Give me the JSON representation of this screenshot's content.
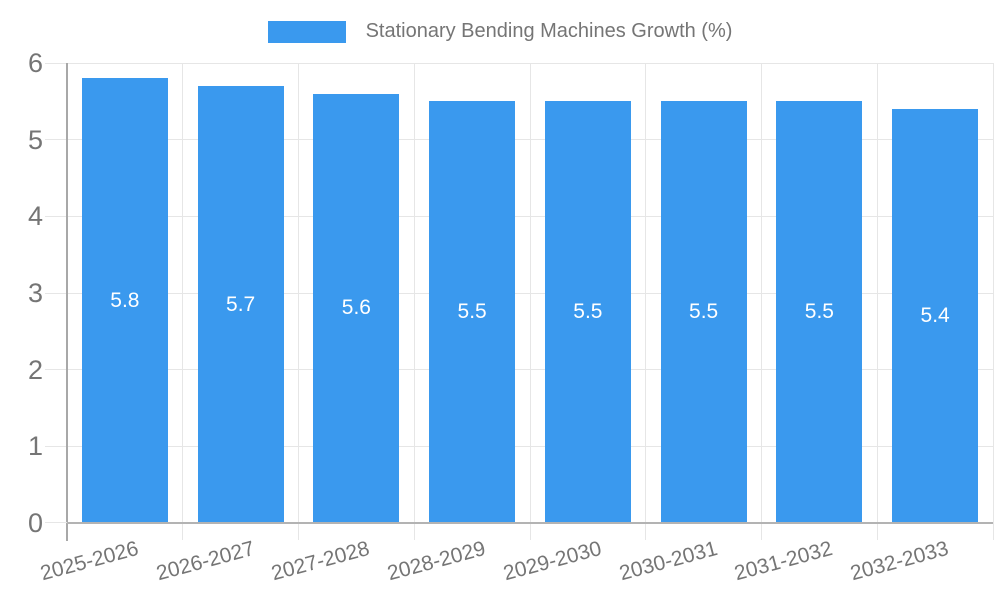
{
  "legend": {
    "label": "Stationary Bending Machines Growth (%)"
  },
  "chart_data": {
    "type": "bar",
    "title": "Stationary Bending Machines Growth (%)",
    "categories": [
      "2025-2026",
      "2026-2027",
      "2027-2028",
      "2028-2029",
      "2029-2030",
      "2030-2031",
      "2031-2032",
      "2032-2033"
    ],
    "values": [
      5.8,
      5.7,
      5.6,
      5.5,
      5.5,
      5.5,
      5.5,
      5.4
    ],
    "bar_labels": [
      "5.8",
      "5.7",
      "5.6",
      "5.5",
      "5.5",
      "5.5",
      "5.5",
      "5.4"
    ],
    "xlabel": "",
    "ylabel": "",
    "ylim": [
      0,
      6
    ],
    "yticks": [
      0,
      1,
      2,
      3,
      4,
      5,
      6
    ],
    "grid": true,
    "legend_position": "top",
    "colors": {
      "bar": "#3a99ee",
      "grid": "#e6e6e6",
      "baseline": "#b3b3b3",
      "axis": "#a8a8a8",
      "tick_label": "#757575",
      "value_label": "#ffffff"
    }
  }
}
